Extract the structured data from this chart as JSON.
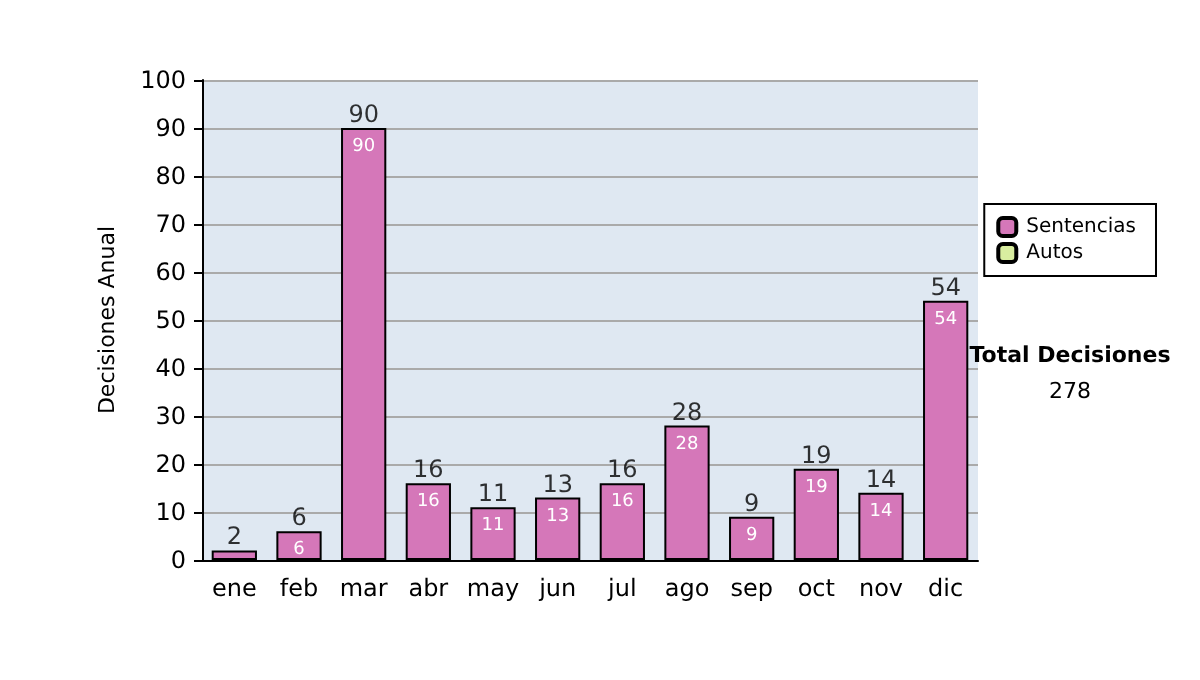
{
  "chart_data": {
    "type": "bar",
    "ylabel": "Decisiones Anual",
    "categories": [
      "ene",
      "feb",
      "mar",
      "abr",
      "may",
      "jun",
      "jul",
      "ago",
      "sep",
      "oct",
      "nov",
      "dic"
    ],
    "series": [
      {
        "name": "Sentencias",
        "color": "#d577b9",
        "values": [
          2,
          6,
          90,
          16,
          11,
          13,
          16,
          28,
          9,
          19,
          14,
          54
        ],
        "value_labels": [
          null,
          "6",
          "90",
          "16",
          "11",
          "13",
          "16",
          "28",
          "9",
          "19",
          "14",
          "54"
        ]
      },
      {
        "name": "Autos",
        "color": "#d9eea0",
        "values": [
          null,
          null,
          null,
          null,
          null,
          null,
          null,
          null,
          null,
          null,
          null,
          null
        ]
      }
    ],
    "stacked": true,
    "totals": [
      "2",
      "6",
      "90",
      "16",
      "11",
      "13",
      "16",
      "28",
      "9",
      "19",
      "14",
      "54"
    ],
    "ylim": [
      0,
      100
    ],
    "yticks": [
      0,
      10,
      20,
      30,
      40,
      50,
      60,
      70,
      80,
      90,
      100
    ],
    "grid": "y",
    "legend": "right",
    "annotations": [
      "Total Decisiones",
      "278"
    ]
  }
}
